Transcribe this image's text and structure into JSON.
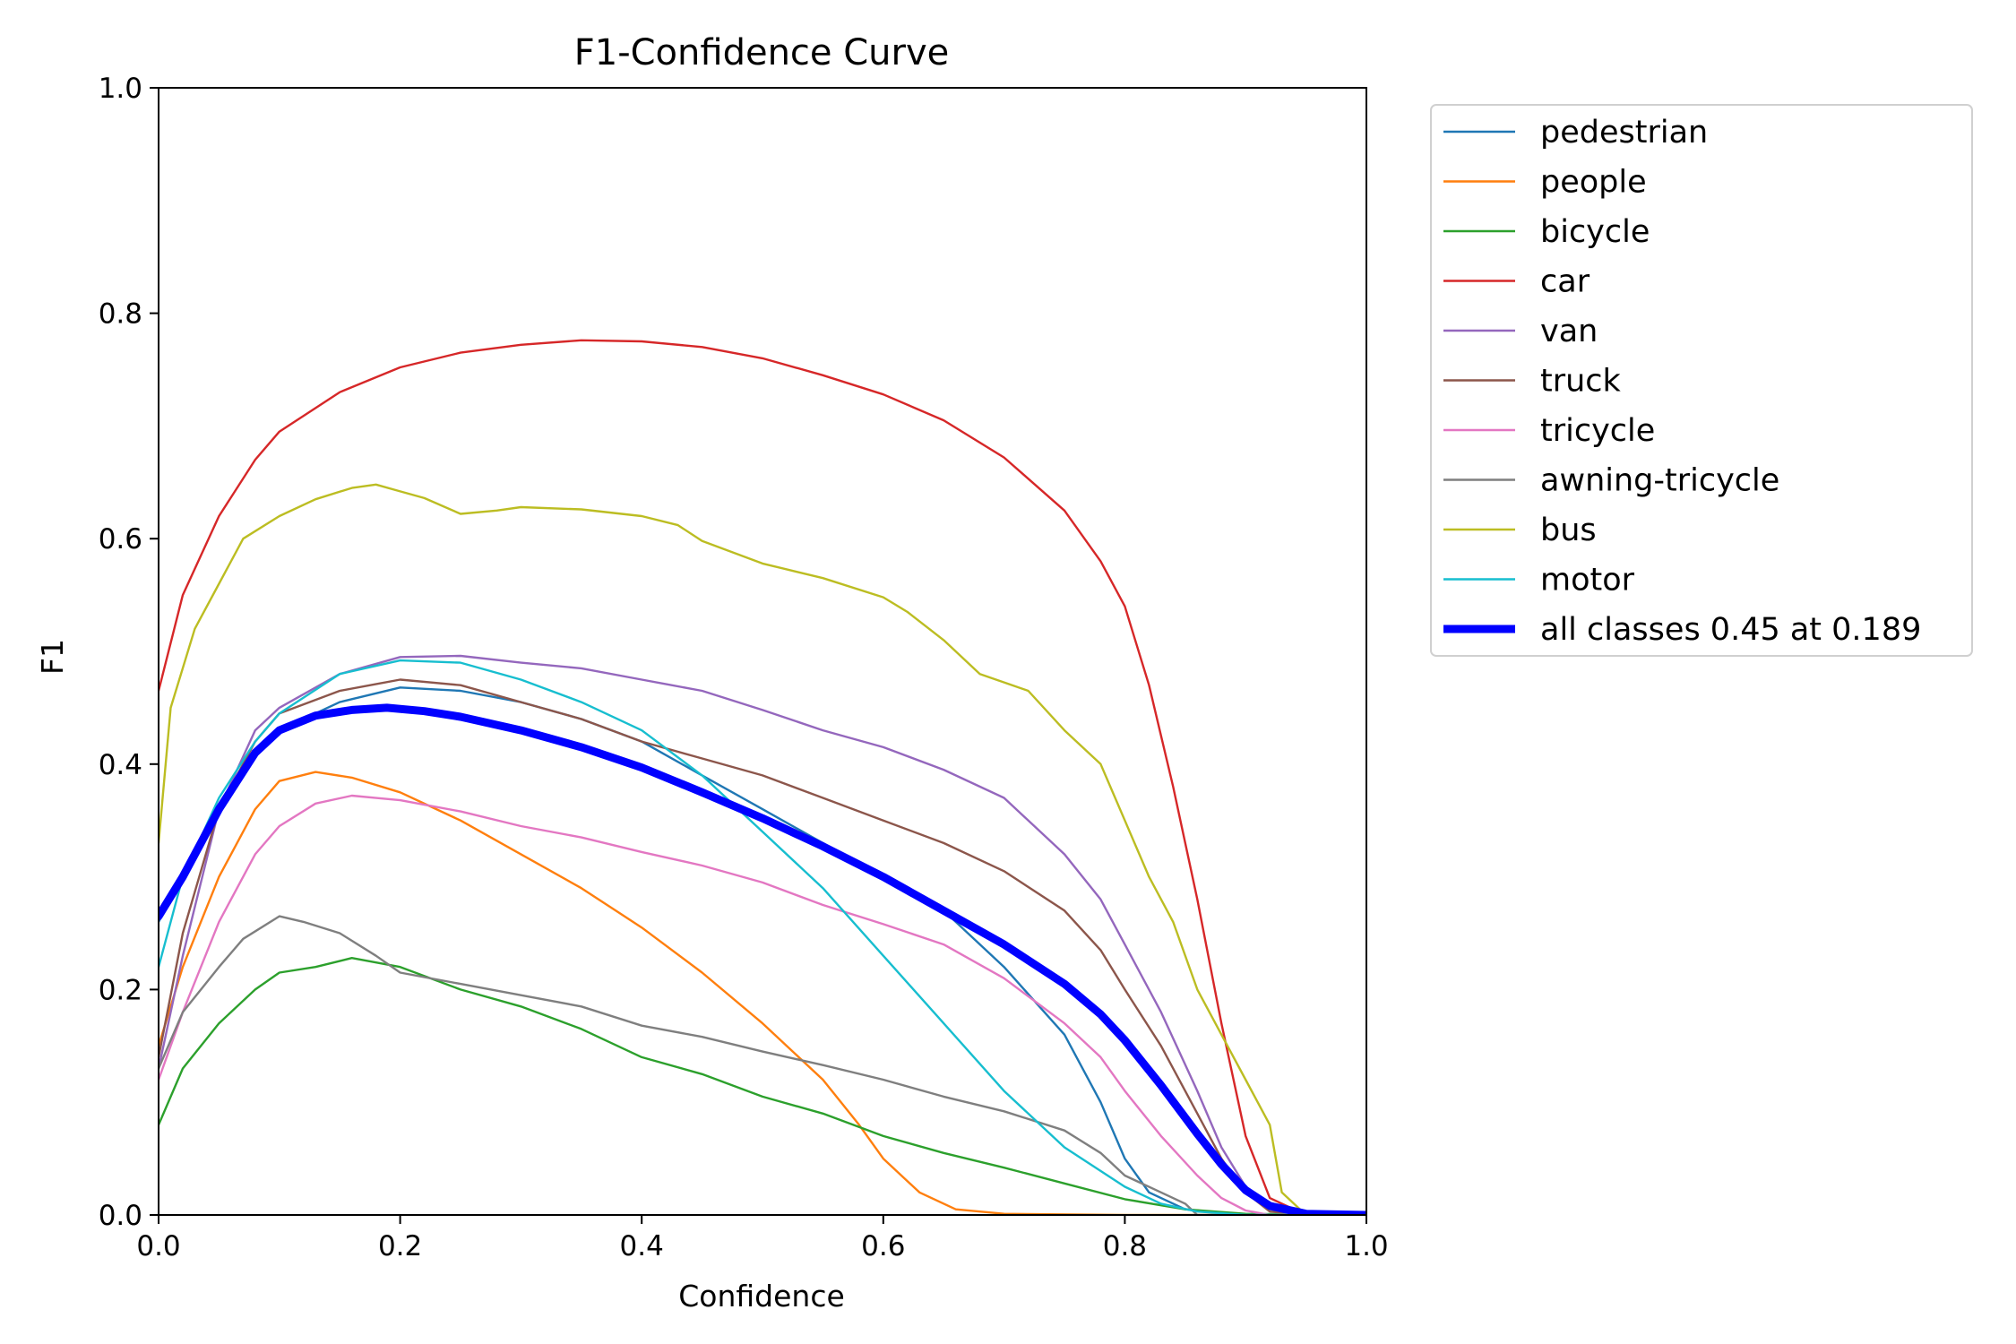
{
  "chart_data": {
    "type": "line",
    "title": "F1-Confidence Curve",
    "xlabel": "Confidence",
    "ylabel": "F1",
    "xlim": [
      0.0,
      1.0
    ],
    "ylim": [
      0.0,
      1.0
    ],
    "xticks": [
      "0.0",
      "0.2",
      "0.4",
      "0.6",
      "0.8",
      "1.0"
    ],
    "yticks": [
      "0.0",
      "0.2",
      "0.4",
      "0.6",
      "0.8",
      "1.0"
    ],
    "legend_position": "outside-top-right",
    "grid": false,
    "series": [
      {
        "name": "pedestrian",
        "color": "#1f77b4",
        "points": [
          [
            0,
            0.26
          ],
          [
            0.02,
            0.3
          ],
          [
            0.05,
            0.36
          ],
          [
            0.08,
            0.41
          ],
          [
            0.1,
            0.43
          ],
          [
            0.15,
            0.455
          ],
          [
            0.2,
            0.468
          ],
          [
            0.25,
            0.465
          ],
          [
            0.3,
            0.455
          ],
          [
            0.35,
            0.44
          ],
          [
            0.4,
            0.42
          ],
          [
            0.45,
            0.39
          ],
          [
            0.5,
            0.36
          ],
          [
            0.55,
            0.33
          ],
          [
            0.6,
            0.3
          ],
          [
            0.65,
            0.27
          ],
          [
            0.7,
            0.22
          ],
          [
            0.75,
            0.16
          ],
          [
            0.78,
            0.1
          ],
          [
            0.8,
            0.05
          ],
          [
            0.82,
            0.02
          ],
          [
            0.85,
            0.005
          ],
          [
            0.9,
            0.0
          ],
          [
            1.0,
            0.0
          ]
        ]
      },
      {
        "name": "people",
        "color": "#ff7f0e",
        "points": [
          [
            0,
            0.15
          ],
          [
            0.02,
            0.22
          ],
          [
            0.05,
            0.3
          ],
          [
            0.08,
            0.36
          ],
          [
            0.1,
            0.385
          ],
          [
            0.13,
            0.393
          ],
          [
            0.16,
            0.388
          ],
          [
            0.2,
            0.375
          ],
          [
            0.25,
            0.35
          ],
          [
            0.3,
            0.32
          ],
          [
            0.35,
            0.29
          ],
          [
            0.4,
            0.255
          ],
          [
            0.45,
            0.215
          ],
          [
            0.5,
            0.17
          ],
          [
            0.55,
            0.12
          ],
          [
            0.58,
            0.08
          ],
          [
            0.6,
            0.05
          ],
          [
            0.63,
            0.02
          ],
          [
            0.66,
            0.005
          ],
          [
            0.7,
            0.001
          ],
          [
            0.8,
            0.0
          ],
          [
            1.0,
            0.0
          ]
        ]
      },
      {
        "name": "bicycle",
        "color": "#2ca02c",
        "points": [
          [
            0,
            0.08
          ],
          [
            0.02,
            0.13
          ],
          [
            0.05,
            0.17
          ],
          [
            0.08,
            0.2
          ],
          [
            0.1,
            0.215
          ],
          [
            0.13,
            0.22
          ],
          [
            0.16,
            0.228
          ],
          [
            0.2,
            0.22
          ],
          [
            0.25,
            0.2
          ],
          [
            0.3,
            0.185
          ],
          [
            0.35,
            0.165
          ],
          [
            0.4,
            0.14
          ],
          [
            0.45,
            0.125
          ],
          [
            0.5,
            0.105
          ],
          [
            0.55,
            0.09
          ],
          [
            0.6,
            0.07
          ],
          [
            0.65,
            0.055
          ],
          [
            0.7,
            0.042
          ],
          [
            0.75,
            0.028
          ],
          [
            0.8,
            0.014
          ],
          [
            0.85,
            0.005
          ],
          [
            0.9,
            0.001
          ],
          [
            1.0,
            0.0
          ]
        ]
      },
      {
        "name": "car",
        "color": "#d62728",
        "points": [
          [
            0,
            0.465
          ],
          [
            0.02,
            0.55
          ],
          [
            0.05,
            0.62
          ],
          [
            0.08,
            0.67
          ],
          [
            0.1,
            0.695
          ],
          [
            0.15,
            0.73
          ],
          [
            0.2,
            0.752
          ],
          [
            0.25,
            0.765
          ],
          [
            0.3,
            0.772
          ],
          [
            0.35,
            0.776
          ],
          [
            0.4,
            0.775
          ],
          [
            0.45,
            0.77
          ],
          [
            0.5,
            0.76
          ],
          [
            0.55,
            0.745
          ],
          [
            0.6,
            0.728
          ],
          [
            0.65,
            0.705
          ],
          [
            0.7,
            0.672
          ],
          [
            0.75,
            0.625
          ],
          [
            0.78,
            0.58
          ],
          [
            0.8,
            0.54
          ],
          [
            0.82,
            0.47
          ],
          [
            0.84,
            0.38
          ],
          [
            0.86,
            0.28
          ],
          [
            0.88,
            0.17
          ],
          [
            0.9,
            0.07
          ],
          [
            0.92,
            0.015
          ],
          [
            0.95,
            0.0
          ],
          [
            1.0,
            0.0
          ]
        ]
      },
      {
        "name": "van",
        "color": "#9467bd",
        "points": [
          [
            0,
            0.13
          ],
          [
            0.02,
            0.23
          ],
          [
            0.05,
            0.36
          ],
          [
            0.08,
            0.43
          ],
          [
            0.1,
            0.45
          ],
          [
            0.15,
            0.48
          ],
          [
            0.2,
            0.495
          ],
          [
            0.25,
            0.496
          ],
          [
            0.3,
            0.49
          ],
          [
            0.35,
            0.485
          ],
          [
            0.4,
            0.475
          ],
          [
            0.45,
            0.465
          ],
          [
            0.5,
            0.448
          ],
          [
            0.55,
            0.43
          ],
          [
            0.6,
            0.415
          ],
          [
            0.65,
            0.395
          ],
          [
            0.7,
            0.37
          ],
          [
            0.75,
            0.32
          ],
          [
            0.78,
            0.28
          ],
          [
            0.8,
            0.24
          ],
          [
            0.83,
            0.18
          ],
          [
            0.86,
            0.11
          ],
          [
            0.88,
            0.06
          ],
          [
            0.9,
            0.025
          ],
          [
            0.92,
            0.005
          ],
          [
            0.95,
            0.0
          ],
          [
            1.0,
            0.0
          ]
        ]
      },
      {
        "name": "truck",
        "color": "#8c564b",
        "points": [
          [
            0,
            0.14
          ],
          [
            0.02,
            0.25
          ],
          [
            0.05,
            0.36
          ],
          [
            0.08,
            0.42
          ],
          [
            0.1,
            0.445
          ],
          [
            0.15,
            0.465
          ],
          [
            0.2,
            0.475
          ],
          [
            0.25,
            0.47
          ],
          [
            0.3,
            0.455
          ],
          [
            0.35,
            0.44
          ],
          [
            0.4,
            0.42
          ],
          [
            0.45,
            0.405
          ],
          [
            0.5,
            0.39
          ],
          [
            0.55,
            0.37
          ],
          [
            0.6,
            0.35
          ],
          [
            0.65,
            0.33
          ],
          [
            0.7,
            0.305
          ],
          [
            0.75,
            0.27
          ],
          [
            0.78,
            0.235
          ],
          [
            0.8,
            0.2
          ],
          [
            0.83,
            0.15
          ],
          [
            0.86,
            0.09
          ],
          [
            0.88,
            0.05
          ],
          [
            0.9,
            0.02
          ],
          [
            0.92,
            0.003
          ],
          [
            0.95,
            0.0
          ],
          [
            1.0,
            0.0
          ]
        ]
      },
      {
        "name": "tricycle",
        "color": "#e377c2",
        "points": [
          [
            0,
            0.12
          ],
          [
            0.02,
            0.18
          ],
          [
            0.05,
            0.26
          ],
          [
            0.08,
            0.32
          ],
          [
            0.1,
            0.345
          ],
          [
            0.13,
            0.365
          ],
          [
            0.16,
            0.372
          ],
          [
            0.2,
            0.368
          ],
          [
            0.25,
            0.358
          ],
          [
            0.3,
            0.345
          ],
          [
            0.35,
            0.335
          ],
          [
            0.4,
            0.322
          ],
          [
            0.45,
            0.31
          ],
          [
            0.5,
            0.295
          ],
          [
            0.55,
            0.275
          ],
          [
            0.6,
            0.258
          ],
          [
            0.65,
            0.24
          ],
          [
            0.7,
            0.21
          ],
          [
            0.75,
            0.17
          ],
          [
            0.78,
            0.14
          ],
          [
            0.8,
            0.11
          ],
          [
            0.83,
            0.07
          ],
          [
            0.86,
            0.035
          ],
          [
            0.88,
            0.015
          ],
          [
            0.9,
            0.004
          ],
          [
            0.92,
            0.0
          ],
          [
            1.0,
            0.0
          ]
        ]
      },
      {
        "name": "awning-tricycle",
        "color": "#7f7f7f",
        "points": [
          [
            0,
            0.13
          ],
          [
            0.02,
            0.18
          ],
          [
            0.05,
            0.22
          ],
          [
            0.07,
            0.245
          ],
          [
            0.1,
            0.265
          ],
          [
            0.12,
            0.26
          ],
          [
            0.15,
            0.25
          ],
          [
            0.18,
            0.23
          ],
          [
            0.2,
            0.215
          ],
          [
            0.25,
            0.205
          ],
          [
            0.3,
            0.195
          ],
          [
            0.35,
            0.185
          ],
          [
            0.4,
            0.168
          ],
          [
            0.45,
            0.158
          ],
          [
            0.5,
            0.145
          ],
          [
            0.55,
            0.133
          ],
          [
            0.6,
            0.12
          ],
          [
            0.65,
            0.105
          ],
          [
            0.7,
            0.092
          ],
          [
            0.75,
            0.075
          ],
          [
            0.78,
            0.055
          ],
          [
            0.8,
            0.035
          ],
          [
            0.83,
            0.02
          ],
          [
            0.85,
            0.01
          ],
          [
            0.86,
            0.0
          ],
          [
            1.0,
            0.0
          ]
        ]
      },
      {
        "name": "bus",
        "color": "#bcbd22",
        "points": [
          [
            0,
            0.33
          ],
          [
            0.01,
            0.45
          ],
          [
            0.03,
            0.52
          ],
          [
            0.05,
            0.56
          ],
          [
            0.07,
            0.6
          ],
          [
            0.1,
            0.62
          ],
          [
            0.13,
            0.635
          ],
          [
            0.16,
            0.645
          ],
          [
            0.18,
            0.648
          ],
          [
            0.2,
            0.642
          ],
          [
            0.22,
            0.636
          ],
          [
            0.25,
            0.622
          ],
          [
            0.28,
            0.625
          ],
          [
            0.3,
            0.628
          ],
          [
            0.35,
            0.626
          ],
          [
            0.4,
            0.62
          ],
          [
            0.43,
            0.612
          ],
          [
            0.45,
            0.598
          ],
          [
            0.5,
            0.578
          ],
          [
            0.55,
            0.565
          ],
          [
            0.6,
            0.548
          ],
          [
            0.62,
            0.535
          ],
          [
            0.65,
            0.51
          ],
          [
            0.68,
            0.48
          ],
          [
            0.72,
            0.465
          ],
          [
            0.75,
            0.43
          ],
          [
            0.78,
            0.4
          ],
          [
            0.8,
            0.35
          ],
          [
            0.82,
            0.3
          ],
          [
            0.84,
            0.26
          ],
          [
            0.86,
            0.2
          ],
          [
            0.88,
            0.16
          ],
          [
            0.9,
            0.12
          ],
          [
            0.92,
            0.08
          ],
          [
            0.93,
            0.02
          ],
          [
            0.95,
            0.0
          ],
          [
            1.0,
            0.0
          ]
        ]
      },
      {
        "name": "motor",
        "color": "#17becf",
        "points": [
          [
            0,
            0.22
          ],
          [
            0.02,
            0.3
          ],
          [
            0.05,
            0.37
          ],
          [
            0.08,
            0.42
          ],
          [
            0.1,
            0.445
          ],
          [
            0.15,
            0.48
          ],
          [
            0.2,
            0.492
          ],
          [
            0.25,
            0.49
          ],
          [
            0.3,
            0.475
          ],
          [
            0.35,
            0.455
          ],
          [
            0.4,
            0.43
          ],
          [
            0.45,
            0.39
          ],
          [
            0.5,
            0.34
          ],
          [
            0.55,
            0.29
          ],
          [
            0.6,
            0.23
          ],
          [
            0.65,
            0.17
          ],
          [
            0.7,
            0.11
          ],
          [
            0.75,
            0.06
          ],
          [
            0.8,
            0.025
          ],
          [
            0.83,
            0.01
          ],
          [
            0.86,
            0.003
          ],
          [
            0.9,
            0.0
          ],
          [
            1.0,
            0.0
          ]
        ]
      },
      {
        "name": "all classes 0.45 at 0.189",
        "color": "#0000ff",
        "bold": true,
        "points": [
          [
            0,
            0.265
          ],
          [
            0.02,
            0.3
          ],
          [
            0.05,
            0.36
          ],
          [
            0.08,
            0.41
          ],
          [
            0.1,
            0.43
          ],
          [
            0.13,
            0.443
          ],
          [
            0.16,
            0.448
          ],
          [
            0.189,
            0.45
          ],
          [
            0.22,
            0.447
          ],
          [
            0.25,
            0.442
          ],
          [
            0.3,
            0.43
          ],
          [
            0.35,
            0.415
          ],
          [
            0.4,
            0.397
          ],
          [
            0.45,
            0.375
          ],
          [
            0.5,
            0.352
          ],
          [
            0.55,
            0.327
          ],
          [
            0.6,
            0.3
          ],
          [
            0.65,
            0.27
          ],
          [
            0.7,
            0.24
          ],
          [
            0.75,
            0.205
          ],
          [
            0.78,
            0.178
          ],
          [
            0.8,
            0.155
          ],
          [
            0.83,
            0.115
          ],
          [
            0.86,
            0.072
          ],
          [
            0.88,
            0.045
          ],
          [
            0.9,
            0.022
          ],
          [
            0.92,
            0.008
          ],
          [
            0.95,
            0.001
          ],
          [
            1.0,
            0.0
          ]
        ]
      }
    ]
  }
}
